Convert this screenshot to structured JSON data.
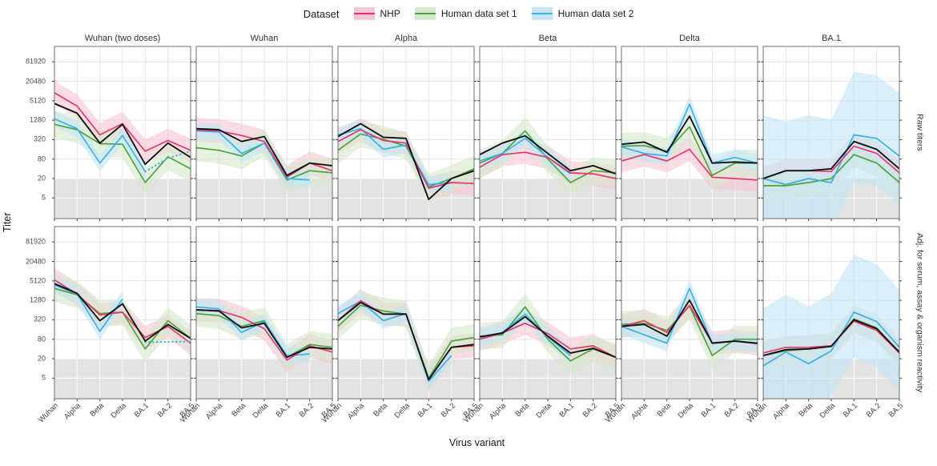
{
  "chart_data": {
    "type": "line",
    "title": "",
    "xlabel": "Virus variant",
    "ylabel": "Titer",
    "x_categories": [
      "Wuhan",
      "Alpha",
      "Beta",
      "Delta",
      "BA.1",
      "BA.2",
      "BA.5"
    ],
    "y_ticks": [
      81920,
      20480,
      5120,
      1280,
      320,
      80,
      20,
      5
    ],
    "y_scale": "log4",
    "detection_limit": 20,
    "grid": true,
    "col_labels": [
      "Wuhan (two doses)",
      "Wuhan",
      "Alpha",
      "Beta",
      "Delta",
      "BA.1"
    ],
    "row_labels": [
      "Raw titers",
      "Adj. for serum, assay & organism reactivity"
    ],
    "legend": {
      "title": "Dataset",
      "items": [
        {
          "key": "nhp",
          "label": "NHP"
        },
        {
          "key": "h1",
          "label": "Human data set 1"
        },
        {
          "key": "h2",
          "label": "Human data set 2"
        }
      ]
    },
    "series_colors": {
      "nhp": {
        "line": "#E8356D",
        "fill": "#F5C6D3"
      },
      "h1": {
        "line": "#4BA43C",
        "fill": "#D6E8CD"
      },
      "h2": {
        "line": "#38B1E8",
        "fill": "#C3E5F6"
      },
      "combined": {
        "line": "#111111"
      }
    },
    "band_factors": {
      "nhp": 2.3,
      "h1": 2.6,
      "h2": 1.8
    },
    "panels": [
      {
        "facet_col": 0,
        "facet_row": 0,
        "nhp": [
          9000,
          3500,
          450,
          1000,
          140,
          300,
          150
        ],
        "h1": [
          950,
          650,
          240,
          230,
          15,
          95,
          40
        ],
        "h2": [
          1400,
          700,
          60,
          430,
          33,
          null,
          null
        ],
        "h2_dash": [
          null,
          null,
          null,
          null,
          33,
          85,
          140
        ],
        "combined": [
          4200,
          2100,
          250,
          950,
          55,
          250,
          90
        ]
      },
      {
        "facet_col": 1,
        "facet_row": 0,
        "nhp": [
          650,
          600,
          430,
          280,
          22,
          60,
          35
        ],
        "h1": [
          180,
          150,
          100,
          250,
          18,
          35,
          30
        ],
        "h2": [
          600,
          550,
          120,
          250,
          20,
          18,
          null
        ],
        "combined": [
          700,
          650,
          280,
          400,
          25,
          60,
          50
        ]
      },
      {
        "facet_col": 2,
        "facet_row": 0,
        "nhp": [
          280,
          650,
          300,
          250,
          10,
          15,
          14
        ],
        "h1": [
          150,
          480,
          330,
          200,
          11,
          20,
          40
        ],
        "h2": [
          450,
          700,
          160,
          220,
          13,
          15,
          null
        ],
        "combined": [
          400,
          1000,
          380,
          350,
          4.5,
          20,
          35
        ]
      },
      {
        "facet_col": 3,
        "facet_row": 0,
        "nhp": [
          45,
          110,
          130,
          90,
          30,
          28,
          20
        ],
        "h1": [
          60,
          120,
          600,
          80,
          15,
          35,
          30
        ],
        "h2": [
          70,
          120,
          350,
          90,
          28,
          null,
          null
        ],
        "combined": [
          110,
          250,
          420,
          120,
          35,
          50,
          28
        ]
      },
      {
        "facet_col": 4,
        "facet_row": 0,
        "nhp": [
          70,
          110,
          70,
          160,
          22,
          20,
          18
        ],
        "h1": [
          200,
          210,
          140,
          800,
          25,
          60,
          60
        ],
        "h2": [
          190,
          120,
          100,
          4000,
          60,
          90,
          60
        ],
        "combined": [
          230,
          270,
          130,
          1700,
          60,
          65,
          60
        ]
      },
      {
        "facet_col": 5,
        "facet_row": 0,
        "nhp": [
          20,
          35,
          35,
          33,
          200,
          120,
          30
        ],
        "h1": [
          12,
          12,
          15,
          20,
          110,
          60,
          15
        ],
        "h2": [
          20,
          13,
          20,
          15,
          450,
          350,
          100
        ],
        "h2_band": [
          30,
          90
        ],
        "combined": [
          20,
          35,
          35,
          40,
          280,
          160,
          40
        ]
      },
      {
        "facet_col": 0,
        "facet_row": 1,
        "nhp": [
          5500,
          2000,
          450,
          550,
          90,
          200,
          60
        ],
        "h1": [
          3000,
          1900,
          500,
          550,
          40,
          300,
          85
        ],
        "h2": [
          3800,
          2000,
          140,
          1400,
          null,
          null,
          null
        ],
        "h2_dash": [
          null,
          null,
          null,
          null,
          65,
          66,
          68
        ],
        "combined": [
          4200,
          2100,
          300,
          1000,
          70,
          230,
          85
        ]
      },
      {
        "facet_col": 1,
        "facet_row": 1,
        "nhp": [
          650,
          620,
          380,
          170,
          18,
          50,
          32
        ],
        "h1": [
          500,
          430,
          200,
          300,
          22,
          55,
          45
        ],
        "h2": [
          800,
          700,
          130,
          280,
          25,
          28,
          null
        ],
        "combined": [
          650,
          600,
          180,
          250,
          22,
          45,
          40
        ]
      },
      {
        "facet_col": 2,
        "facet_row": 1,
        "nhp": [
          300,
          1250,
          480,
          480,
          4.5,
          45,
          50
        ],
        "h1": [
          200,
          900,
          600,
          480,
          5,
          70,
          90
        ],
        "h2": [
          500,
          1200,
          300,
          500,
          4,
          25,
          null
        ],
        "combined": [
          300,
          1100,
          480,
          480,
          4.5,
          45,
          55
        ]
      },
      {
        "facet_col": 3,
        "facet_row": 1,
        "nhp": [
          80,
          125,
          250,
          120,
          40,
          50,
          22
        ],
        "h1": [
          100,
          110,
          800,
          80,
          17,
          40,
          22
        ],
        "h2": [
          90,
          130,
          480,
          95,
          25,
          null,
          null
        ],
        "combined": [
          95,
          125,
          400,
          100,
          30,
          42,
          22
        ]
      },
      {
        "facet_col": 4,
        "facet_row": 1,
        "nhp": [
          200,
          300,
          130,
          900,
          62,
          70,
          58
        ],
        "h1": [
          230,
          250,
          150,
          850,
          25,
          80,
          80
        ],
        "h2": [
          200,
          110,
          60,
          3000,
          60,
          70,
          60
        ],
        "combined": [
          200,
          230,
          100,
          1300,
          60,
          70,
          60
        ]
      },
      {
        "facet_col": 5,
        "facet_row": 1,
        "nhp": [
          30,
          45,
          45,
          50,
          290,
          150,
          30
        ],
        "h1": [
          25,
          35,
          40,
          48,
          340,
          180,
          30
        ],
        "h2": [
          12,
          32,
          14,
          35,
          550,
          280,
          45
        ],
        "h2_band": [
          25,
          60
        ],
        "combined": [
          25,
          38,
          40,
          48,
          320,
          170,
          32
        ]
      }
    ]
  }
}
